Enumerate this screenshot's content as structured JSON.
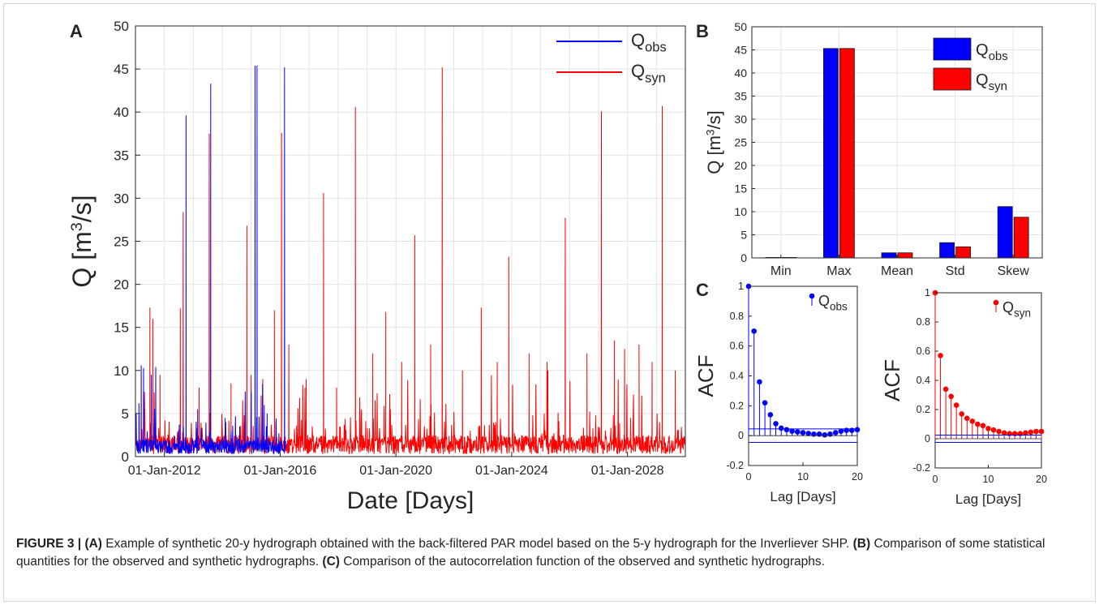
{
  "colors": {
    "obs": "#0000ff",
    "syn": "#ff0000"
  },
  "panels": {
    "a": "A",
    "b": "B",
    "c": "C"
  },
  "chart_data": [
    {
      "id": "A",
      "type": "line",
      "xlabel": "Date [Days]",
      "ylabel": "Q [m³/s]",
      "xlim": [
        2011.0,
        2030.0
      ],
      "ylim": [
        0,
        50
      ],
      "yticks": [
        0,
        5,
        10,
        15,
        20,
        25,
        30,
        35,
        40,
        45,
        50
      ],
      "xticks": [
        {
          "x": 2012.0,
          "label": "01-Jan-2012"
        },
        {
          "x": 2016.0,
          "label": "01-Jan-2016"
        },
        {
          "x": 2020.0,
          "label": "01-Jan-2020"
        },
        {
          "x": 2024.0,
          "label": "01-Jan-2024"
        },
        {
          "x": 2028.0,
          "label": "01-Jan-2028"
        }
      ],
      "grid": true,
      "legend_position": "top-right",
      "legend": [
        {
          "sub": "obs",
          "color": "#0000ff"
        },
        {
          "sub": "syn",
          "color": "#ff0000"
        }
      ],
      "series": [
        {
          "key": "syn",
          "color": "#ff0000",
          "baseline_range": [
            0.3,
            2.5
          ],
          "peaks": [
            [
              2011.13,
              4.2
            ],
            [
              2011.5,
              17.3
            ],
            [
              2011.6,
              16.0
            ],
            [
              2011.85,
              9.5
            ],
            [
              2012.55,
              17.2
            ],
            [
              2012.65,
              28.4
            ],
            [
              2013.2,
              8.0
            ],
            [
              2013.55,
              37.5
            ],
            [
              2014.3,
              8.5
            ],
            [
              2014.85,
              26.8
            ],
            [
              2015.4,
              9.0
            ],
            [
              2015.8,
              17.0
            ],
            [
              2016.05,
              37.6
            ],
            [
              2016.3,
              13.0
            ],
            [
              2016.9,
              9.0
            ],
            [
              2017.5,
              30.6
            ],
            [
              2017.95,
              8.0
            ],
            [
              2018.6,
              40.6
            ],
            [
              2019.2,
              12.0
            ],
            [
              2019.65,
              16.8
            ],
            [
              2020.2,
              11.0
            ],
            [
              2020.65,
              25.7
            ],
            [
              2021.2,
              13.0
            ],
            [
              2021.6,
              45.2
            ],
            [
              2022.3,
              10.0
            ],
            [
              2022.95,
              17.3
            ],
            [
              2023.5,
              11.0
            ],
            [
              2023.9,
              23.2
            ],
            [
              2024.6,
              12.0
            ],
            [
              2025.25,
              10.0
            ],
            [
              2025.85,
              27.7
            ],
            [
              2026.6,
              12.0
            ],
            [
              2027.1,
              40.1
            ],
            [
              2027.55,
              13.5
            ],
            [
              2027.9,
              12.5
            ],
            [
              2028.4,
              13.0
            ],
            [
              2028.85,
              11.0
            ],
            [
              2029.2,
              40.7
            ],
            [
              2029.65,
              10.0
            ]
          ]
        },
        {
          "key": "obs",
          "color": "#0000ff",
          "range": [
            2011.0,
            2016.2
          ],
          "baseline_range": [
            0.3,
            2.0
          ],
          "peaks": [
            [
              2011.12,
              6.2
            ],
            [
              2011.2,
              10.6
            ],
            [
              2011.28,
              10.3
            ],
            [
              2011.55,
              9.5
            ],
            [
              2011.7,
              10.4
            ],
            [
              2012.75,
              39.6
            ],
            [
              2013.15,
              5.5
            ],
            [
              2013.6,
              43.3
            ],
            [
              2014.1,
              4.5
            ],
            [
              2014.6,
              3.5
            ],
            [
              2015.0,
              7.5
            ],
            [
              2015.13,
              45.4
            ],
            [
              2015.2,
              45.4
            ],
            [
              2015.45,
              6.0
            ],
            [
              2015.55,
              5.0
            ],
            [
              2015.85,
              4.0
            ],
            [
              2016.15,
              45.2
            ]
          ]
        }
      ]
    },
    {
      "id": "B",
      "type": "bar",
      "ylabel": "Q [m³/s]",
      "ylim": [
        0,
        50
      ],
      "yticks": [
        0,
        5,
        10,
        15,
        20,
        25,
        30,
        35,
        40,
        45,
        50
      ],
      "categories": [
        "Min",
        "Max",
        "Mean",
        "Std",
        "Skew"
      ],
      "legend_position": "top-right",
      "legend": [
        {
          "sub": "obs",
          "color": "#0000ff"
        },
        {
          "sub": "syn",
          "color": "#ff0000"
        }
      ],
      "series": [
        {
          "key": "obs",
          "color": "#0000ff",
          "values": [
            0.1,
            45.3,
            1.1,
            3.3,
            11.1
          ]
        },
        {
          "key": "syn",
          "color": "#ff0000",
          "values": [
            0.1,
            45.3,
            1.1,
            2.4,
            8.8
          ]
        }
      ]
    },
    {
      "id": "C-obs",
      "type": "scatter",
      "ylabel": "ACF",
      "xlabel": "Lag [Days]",
      "xlim": [
        0,
        20
      ],
      "ylim": [
        -0.2,
        1
      ],
      "xticks": [
        0,
        10,
        20
      ],
      "yticks": [
        -0.2,
        0,
        0.2,
        0.4,
        0.6,
        0.8,
        1
      ],
      "legend_position": "top-right",
      "legend": [
        {
          "sub": "obs",
          "color": "#0000ff"
        }
      ],
      "confidence_bounds": [
        0.045,
        -0.045
      ],
      "series": [
        {
          "key": "obs",
          "color": "#0000ff",
          "x": [
            0,
            1,
            2,
            3,
            4,
            5,
            6,
            7,
            8,
            9,
            10,
            11,
            12,
            13,
            14,
            15,
            16,
            17,
            18,
            19,
            20
          ],
          "values": [
            1.0,
            0.7,
            0.36,
            0.22,
            0.14,
            0.08,
            0.05,
            0.04,
            0.03,
            0.025,
            0.02,
            0.015,
            0.01,
            0.01,
            0.005,
            0.01,
            0.02,
            0.03,
            0.035,
            0.035,
            0.04
          ]
        }
      ]
    },
    {
      "id": "C-syn",
      "type": "scatter",
      "ylabel": "ACF",
      "xlabel": "Lag [Days]",
      "xlim": [
        0,
        20
      ],
      "ylim": [
        -0.2,
        1
      ],
      "xticks": [
        0,
        10,
        20
      ],
      "yticks": [
        -0.2,
        0,
        0.2,
        0.4,
        0.6,
        0.8,
        1
      ],
      "legend_position": "top-right",
      "legend": [
        {
          "sub": "syn",
          "color": "#ff0000"
        }
      ],
      "confidence_bounds": [
        0.025,
        -0.025
      ],
      "series": [
        {
          "key": "syn",
          "color": "#ff0000",
          "x": [
            0,
            1,
            2,
            3,
            4,
            5,
            6,
            7,
            8,
            9,
            10,
            11,
            12,
            13,
            14,
            15,
            16,
            17,
            18,
            19,
            20
          ],
          "values": [
            1.0,
            0.57,
            0.34,
            0.29,
            0.23,
            0.17,
            0.14,
            0.12,
            0.1,
            0.09,
            0.07,
            0.06,
            0.05,
            0.04,
            0.035,
            0.035,
            0.035,
            0.04,
            0.045,
            0.05,
            0.05
          ]
        }
      ]
    }
  ],
  "caption": {
    "label": "FIGURE 3 | ",
    "parts": [
      {
        "bold": "(A)",
        "text": " Example of synthetic 20-y hydrograph obtained with the back-filtered PAR model based on the 5-y hydrograph for the Inverliever SHP. "
      },
      {
        "bold": "(B)",
        "text": " Comparison of some statistical quantities for the observed and synthetic hydrographs. "
      },
      {
        "bold": "(C)",
        "text": " Comparison of the autocorrelation function of the observed and synthetic hydrographs."
      }
    ]
  }
}
